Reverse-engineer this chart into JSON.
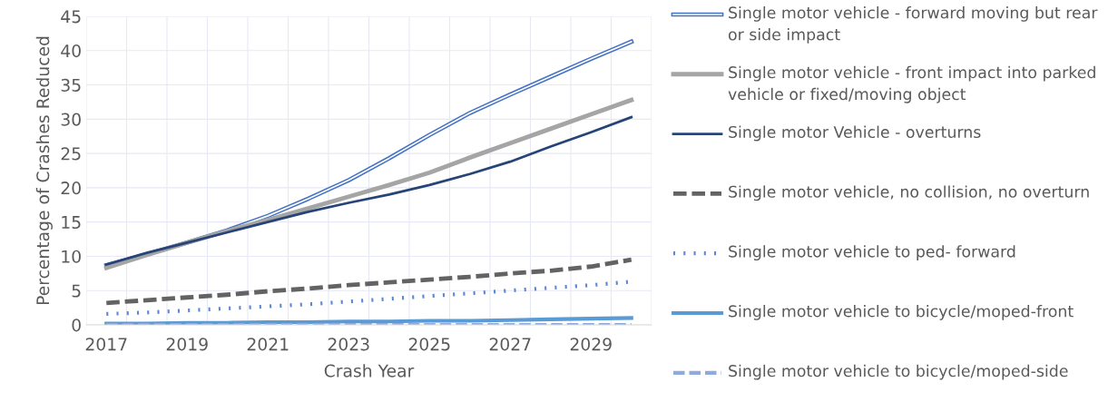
{
  "chart_data": {
    "type": "line",
    "xlabel": "Crash Year",
    "ylabel": "Percentage of Crashes Reduced",
    "categories": [
      "2017",
      null,
      "2019",
      null,
      "2021",
      null,
      "2023",
      null,
      "2025",
      null,
      "2027",
      null,
      "2029",
      null
    ],
    "ylim": [
      0,
      45
    ],
    "yticks": [
      0,
      5,
      10,
      15,
      20,
      25,
      30,
      35,
      40,
      45
    ],
    "grid": true,
    "legend": "right",
    "marker": "none",
    "series": [
      {
        "name": "Single motor vehicle - forward moving but rear or side impact",
        "color": "#4472c4",
        "line_style": "solid",
        "values": [
          8.7,
          10.3,
          12.0,
          13.8,
          15.9,
          18.4,
          21.1,
          24.3,
          27.7,
          30.9,
          33.6,
          36.2,
          38.8,
          41.3
        ]
      },
      {
        "name": "Single motor vehicle - front impact into parked vehicle or fixed/moving object",
        "color": "#a5a5a5",
        "line_style": "solid",
        "values": [
          8.3,
          10.2,
          12.0,
          13.7,
          15.3,
          17.0,
          18.7,
          20.4,
          22.2,
          24.4,
          26.5,
          28.6,
          30.7,
          32.8
        ]
      },
      {
        "name": "Single motor Vehicle - overturns",
        "color": "#264478",
        "line_style": "solid",
        "values": [
          8.8,
          10.5,
          12.0,
          13.5,
          15.0,
          16.5,
          17.8,
          19.0,
          20.4,
          22.0,
          23.8,
          26.0,
          28.1,
          30.3
        ]
      },
      {
        "name": "Single motor vehicle, no collision, no overturn",
        "color": "#636363",
        "line_style": "dashed",
        "values": [
          3.2,
          3.6,
          4.0,
          4.4,
          4.9,
          5.3,
          5.8,
          6.2,
          6.6,
          7.0,
          7.5,
          7.9,
          8.5,
          9.5
        ]
      },
      {
        "name": "Single motor vehicle to ped- forward",
        "color": "#5b87d6",
        "line_style": "dotted",
        "values": [
          1.6,
          1.8,
          2.1,
          2.4,
          2.7,
          3.0,
          3.4,
          3.8,
          4.2,
          4.6,
          5.0,
          5.4,
          5.8,
          6.3
        ]
      },
      {
        "name": "Single motor vehicle to bicycle/moped-front",
        "color": "#5b9bd5",
        "line_style": "solid",
        "values": [
          0.2,
          0.2,
          0.3,
          0.3,
          0.4,
          0.4,
          0.5,
          0.5,
          0.6,
          0.6,
          0.7,
          0.8,
          0.9,
          1.0
        ]
      },
      {
        "name": "Single motor vehicle to bicycle/moped-side",
        "color": "#8faadc",
        "line_style": "dashed",
        "values": [
          0,
          0,
          0,
          0,
          0,
          0,
          0,
          0,
          0,
          0,
          0,
          0,
          0,
          0
        ]
      }
    ]
  }
}
